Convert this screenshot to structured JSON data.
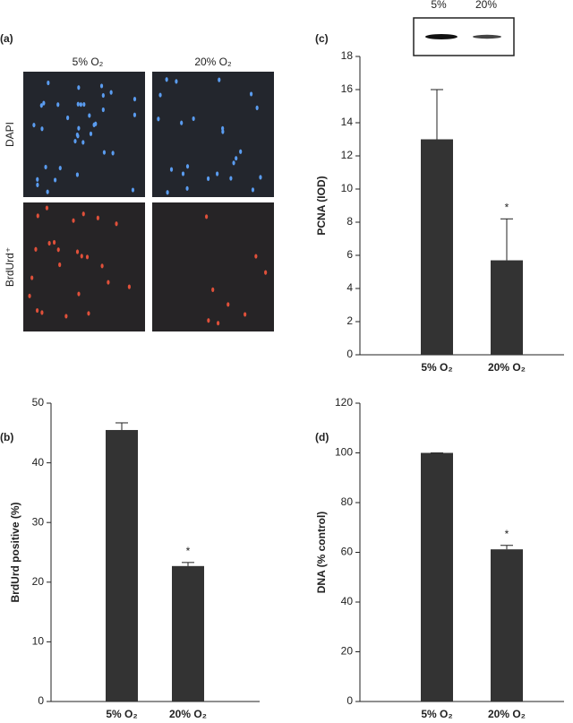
{
  "images": {
    "label": "(a)",
    "columns": [
      "5% O₂",
      "20% O₂"
    ],
    "rows": [
      "DAPI",
      "BrdUrd⁺"
    ]
  },
  "blot": {
    "lanes": [
      "5%",
      "20%"
    ]
  },
  "chart_data": [
    {
      "type": "bar",
      "panel": "(b)",
      "y_label": "BrdUrd positive (%)",
      "categories": [
        "5% O₂",
        "20% O₂"
      ],
      "values": [
        45.5,
        22.7
      ],
      "errors": [
        1.2,
        0.6
      ],
      "significance": [
        null,
        "*"
      ],
      "color": "#333333",
      "ylim": [
        0,
        50
      ],
      "yticks": [
        0,
        10,
        20,
        30,
        40,
        50
      ]
    },
    {
      "type": "bar",
      "panel": "(c)",
      "y_label": "PCNA (IOD)",
      "categories": [
        "5% O₂",
        "20% O₂"
      ],
      "values": [
        13,
        5.7
      ],
      "errors": [
        3,
        2.5
      ],
      "significance": [
        null,
        "*"
      ],
      "color": "#333333",
      "ylim": [
        0,
        18
      ],
      "yticks": [
        0,
        2,
        4,
        6,
        8,
        10,
        12,
        14,
        16,
        18
      ]
    },
    {
      "type": "bar",
      "panel": "(d)",
      "y_label": "DNA (% control)",
      "categories": [
        "5% O₂",
        "20% O₂"
      ],
      "values": [
        100,
        61.2
      ],
      "errors": [
        0,
        1.6
      ],
      "significance": [
        null,
        "*"
      ],
      "color": "#333333",
      "ylim": [
        0,
        120
      ],
      "yticks": [
        0,
        20,
        40,
        60,
        80,
        100,
        120
      ]
    }
  ]
}
